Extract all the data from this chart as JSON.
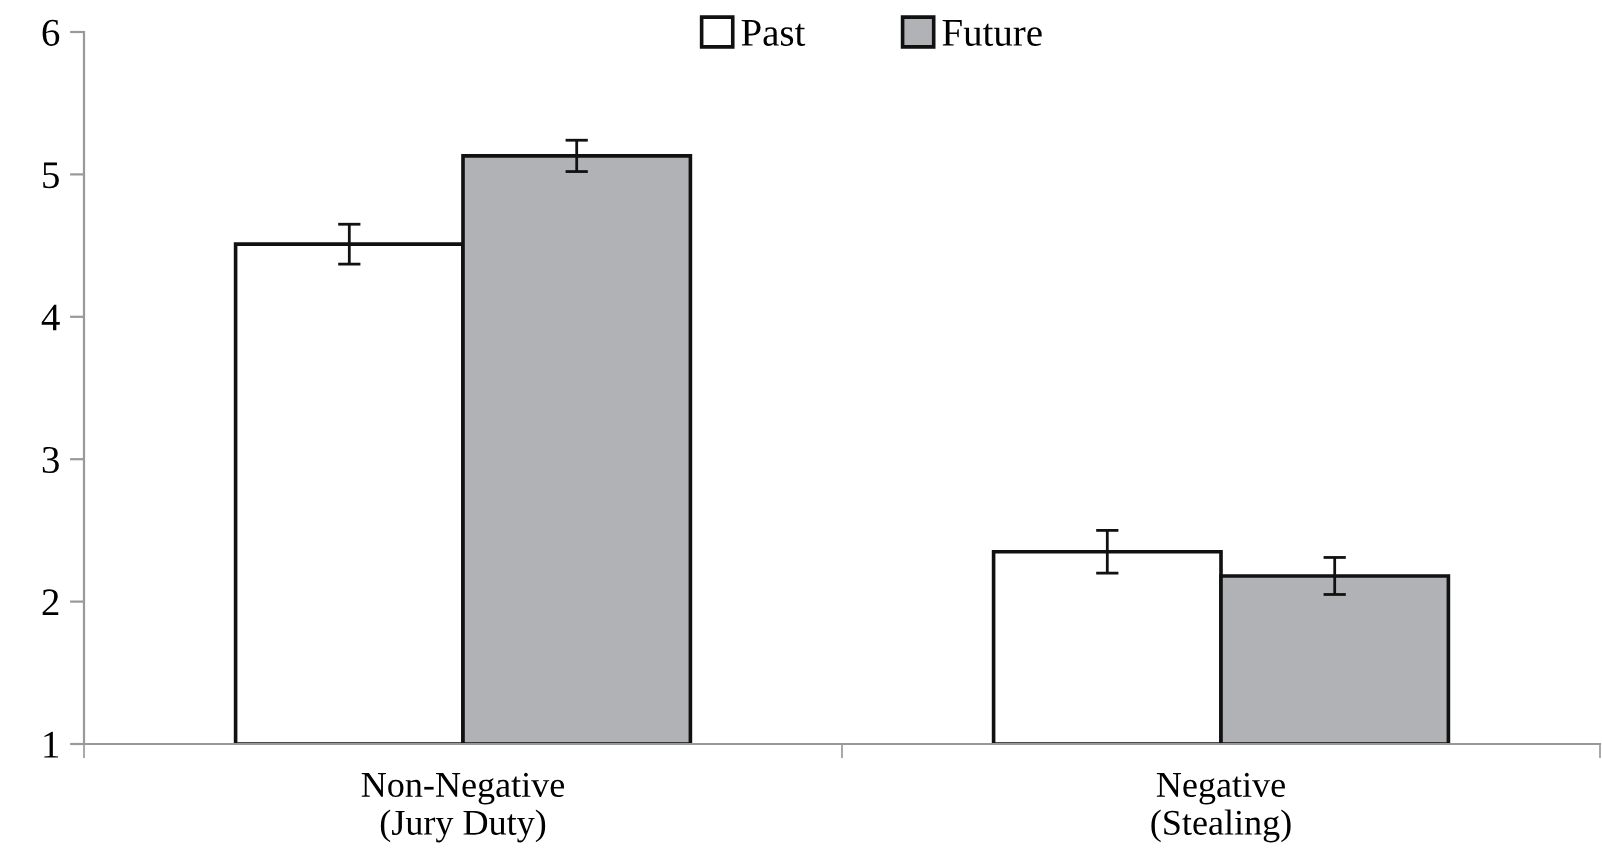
{
  "chart_data": {
    "type": "bar",
    "categories": [
      "Non-Negative\n(Jury Duty)",
      "Negative\n(Stealing)"
    ],
    "series": [
      {
        "name": "Past",
        "color": "#ffffff",
        "values": [
          4.51,
          2.35
        ],
        "errors": [
          0.14,
          0.15
        ]
      },
      {
        "name": "Future",
        "color": "#b1b2b5",
        "values": [
          5.13,
          2.18
        ],
        "errors": [
          0.11,
          0.13
        ]
      }
    ],
    "ylim": [
      1,
      6
    ],
    "yticks": [
      1,
      2,
      3,
      4,
      5,
      6
    ],
    "grid": false,
    "legend": "top"
  }
}
